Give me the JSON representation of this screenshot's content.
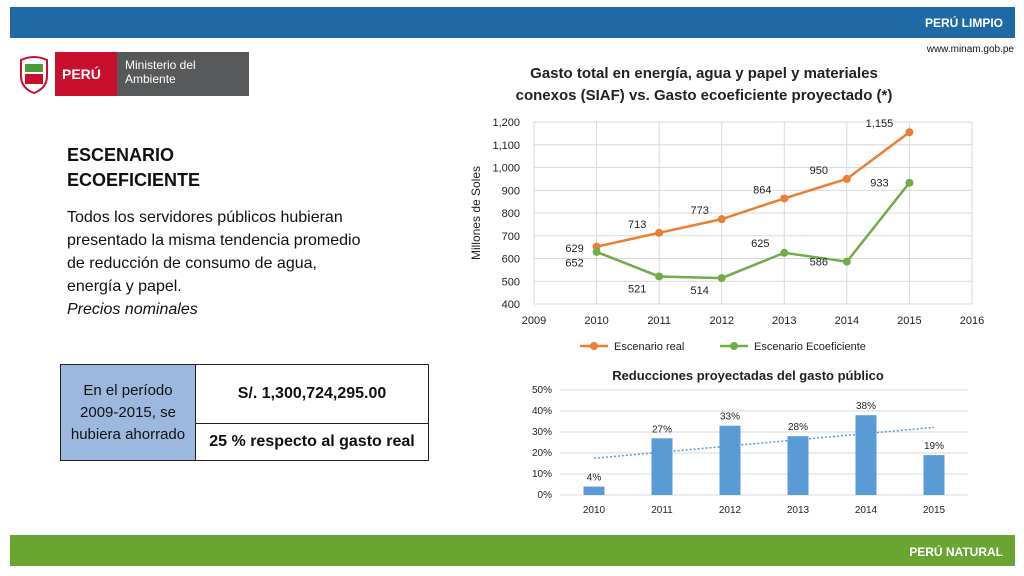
{
  "header": {
    "brand": "PERÚ LIMPIO",
    "url": "www.minam.gob.pe"
  },
  "footer": {
    "brand": "PERÚ NATURAL"
  },
  "logo": {
    "country": "PERÚ",
    "ministry": "Ministerio del Ambiente"
  },
  "left": {
    "heading": "ESCENARIO ECOEFICIENTE",
    "body": "Todos los servidores públicos hubieran presentado la misma tendencia promedio de reducción de consumo de agua, energía y papel.",
    "note": "Precios nominales",
    "table": {
      "label": "En el período 2009-2015, se hubiera ahorrado",
      "amount": "S/. 1,300,724,295.00",
      "percent": "25 % respecto al gasto real"
    }
  },
  "colors": {
    "orange": "#ed7d31",
    "green": "#70ad47",
    "blue": "#5b9bd5",
    "topbar": "#1f6aa5",
    "bottombar": "#6aa431"
  },
  "chart_data": [
    {
      "type": "line",
      "title": "Gasto total  en energía, agua y papel y materiales conexos (SIAF) vs. Gasto ecoeficiente proyectado (*)",
      "ylabel": "Millones de Soles",
      "xlabel": "",
      "x": [
        2010,
        2011,
        2012,
        2013,
        2014,
        2015
      ],
      "xlim": [
        2009,
        2016
      ],
      "ylim": [
        400,
        1200
      ],
      "xticks": [
        "2009",
        "2010",
        "2011",
        "2012",
        "2013",
        "2014",
        "2015",
        "2016"
      ],
      "yticks": [
        "400",
        "500",
        "600",
        "700",
        "800",
        "900",
        "1,000",
        "1,100",
        "1,200"
      ],
      "series": [
        {
          "name": "Escenario real",
          "color": "#ed7d31",
          "values": [
            652,
            713,
            773,
            864,
            950,
            1155
          ],
          "labels": [
            "652",
            "713",
            "773",
            "864",
            "950",
            "1,155"
          ]
        },
        {
          "name": "Escenario Ecoeficiente",
          "color": "#70ad47",
          "values": [
            629,
            521,
            514,
            625,
            586,
            933
          ],
          "labels": [
            "629",
            "521",
            "514",
            "625",
            "586",
            "933"
          ]
        }
      ],
      "grid": true,
      "legend": "bottom"
    },
    {
      "type": "bar",
      "title": "Reducciones proyectadas del gasto público",
      "categories": [
        "2010",
        "2011",
        "2012",
        "2013",
        "2014",
        "2015"
      ],
      "values": [
        4,
        27,
        33,
        28,
        38,
        19
      ],
      "labels": [
        "4%",
        "27%",
        "33%",
        "28%",
        "38%",
        "19%"
      ],
      "ylim": [
        0,
        50
      ],
      "yticks": [
        "0%",
        "10%",
        "20%",
        "30%",
        "40%",
        "50%"
      ],
      "trendline": "linear, dotted",
      "grid": true
    }
  ]
}
